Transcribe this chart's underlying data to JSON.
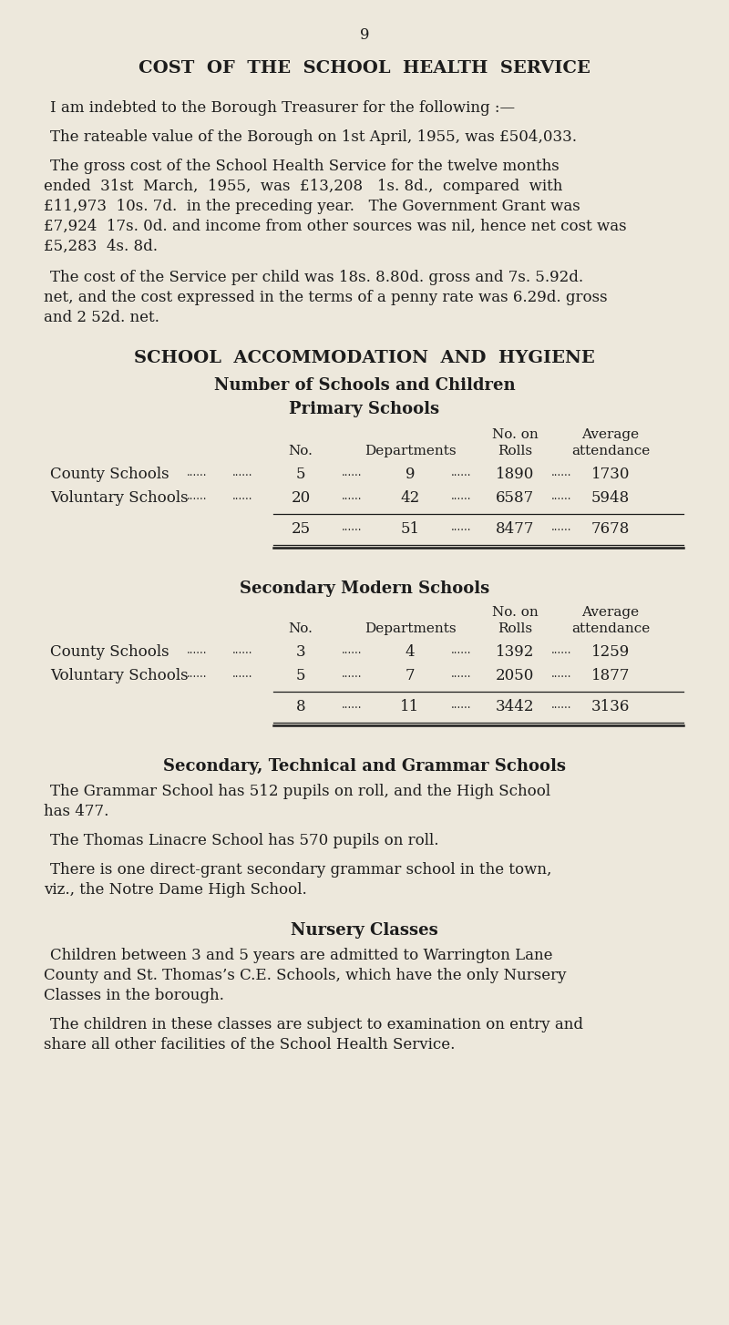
{
  "bg_color": "#ede8dc",
  "text_color": "#1c1c1c",
  "page_number": "9",
  "title": "COST  OF  THE  SCHOOL  HEALTH  SERVICE",
  "para1": "I am indebted to the Borough Treasurer for the following :—",
  "para2": "The rateable value of the Borough on 1st April, 1955, was £504,033.",
  "para3_lines": [
    "The gross cost of the School Health Service for the twelve months",
    "ended  31st  March,  1955,  was  £13,208   1s. 8d.,  compared  with",
    "£11,973  10s. 7d.  in the preceding year.   The Government Grant was",
    "£7,924  17s. 0d. and income from other sources was nil, hence net cost was",
    "£5,283  4s. 8d."
  ],
  "para4_lines": [
    "The cost of the Service per child was 18s. 8.80d. gross and 7s. 5.92d.",
    "net, and the cost expressed in the terms of a penny rate was 6.29d. gross",
    "and 2 52d. net."
  ],
  "section_title": "SCHOOL  ACCOMMODATION  AND  HYGIENE",
  "section_sub1": "Number of Schools and Children",
  "section_sub2": "Primary Schools",
  "col_header1a": "No. on",
  "col_header1b": "Average",
  "col_header2a": "No.",
  "col_header2b": "Departments",
  "col_header2c": "Rolls",
  "col_header2d": "attendance",
  "table1_rows": [
    [
      "County Schools",
      "5",
      "9",
      "1890",
      "1730"
    ],
    [
      "Voluntary Schools",
      "20",
      "42",
      "6587",
      "5948"
    ]
  ],
  "table1_total": [
    "25",
    "51",
    "8477",
    "7678"
  ],
  "section2_title": "Secondary Modern Schools",
  "table2_rows": [
    [
      "County Schools",
      "3",
      "4",
      "1392",
      "1259"
    ],
    [
      "Voluntary Schools",
      "5",
      "7",
      "2050",
      "1877"
    ]
  ],
  "table2_total": [
    "8",
    "11",
    "3442",
    "3136"
  ],
  "section3_title": "Secondary, Technical and Grammar Schools",
  "section3_para1_lines": [
    "The Grammar School has 512 pupils on roll, and the High School",
    "has 477."
  ],
  "section3_para2": "The Thomas Linacre School has 570 pupils on roll.",
  "section3_para3_lines": [
    "There is one direct-grant secondary grammar school in the town,",
    "viz., the Notre Dame High School."
  ],
  "section4_title": "Nursery Classes",
  "section4_para1_lines": [
    "Children between 3 and 5 years are admitted to Warrington Lane",
    "County and St. Thomas’s C.E. Schools, which have the only Nursery",
    "Classes in the borough."
  ],
  "section4_para2_lines": [
    "The children in these classes are subject to examination on entry and",
    "share all other facilities of the School Health Service."
  ],
  "figw": 8.0,
  "figh": 14.54,
  "dpi": 100
}
